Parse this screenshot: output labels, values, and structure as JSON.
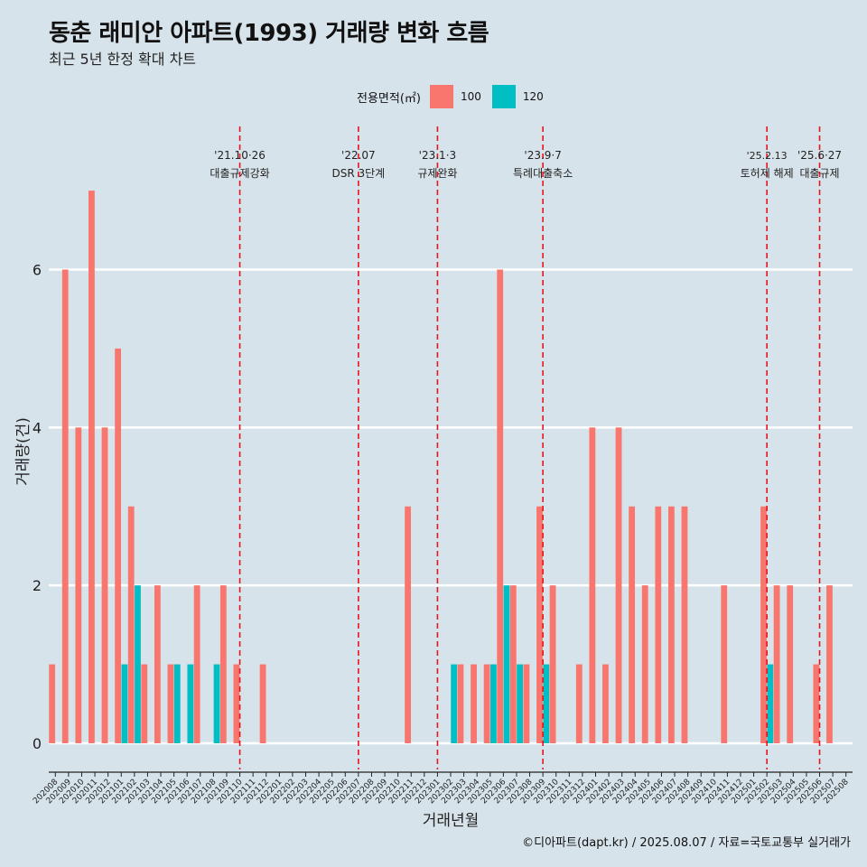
{
  "title": "동춘 래미안 아파트(1993) 거래량 변화 흐름",
  "subtitle": "최근 5년 한정 확대 차트",
  "caption": "©디아파트(dapt.kr) / 2025.08.07 / 자료=국토교통부 실거래가",
  "legend": {
    "title": "전용면적(㎡)",
    "items": [
      {
        "label": "100",
        "color": "#f8766d"
      },
      {
        "label": "120",
        "color": "#00bfc4"
      }
    ]
  },
  "chart_data": {
    "type": "bar",
    "xlabel": "거래년월",
    "ylabel": "거래량(건)",
    "ylim": [
      0,
      7.4
    ],
    "yticks": [
      0,
      2,
      4,
      6
    ],
    "grid": true,
    "legend_position": "top",
    "categories": [
      "202008",
      "202009",
      "202010",
      "202011",
      "202012",
      "202101",
      "202102",
      "202103",
      "202104",
      "202105",
      "202106",
      "202107",
      "202108",
      "202109",
      "202110",
      "202111",
      "202112",
      "202201",
      "202202",
      "202203",
      "202204",
      "202205",
      "202206",
      "202207",
      "202208",
      "202209",
      "202210",
      "202211",
      "202212",
      "202301",
      "202302",
      "202303",
      "202304",
      "202305",
      "202306",
      "202307",
      "202308",
      "202309",
      "202310",
      "202311",
      "202312",
      "202401",
      "202402",
      "202403",
      "202404",
      "202405",
      "202406",
      "202407",
      "202408",
      "202409",
      "202410",
      "202411",
      "202412",
      "202501",
      "202502",
      "202503",
      "202504",
      "202505",
      "202506",
      "202507",
      "202508"
    ],
    "series": [
      {
        "name": "100",
        "color": "#f8766d",
        "values": [
          1,
          6,
          4,
          7,
          4,
          5,
          3,
          1,
          2,
          1,
          0,
          2,
          0,
          2,
          1,
          0,
          1,
          0,
          0,
          0,
          0,
          0,
          0,
          0,
          0,
          0,
          0,
          3,
          0,
          0,
          0,
          1,
          1,
          1,
          6,
          2,
          1,
          3,
          2,
          0,
          1,
          4,
          1,
          4,
          3,
          2,
          3,
          3,
          3,
          0,
          0,
          2,
          0,
          0,
          3,
          2,
          2,
          0,
          1,
          2,
          0
        ]
      },
      {
        "name": "120",
        "color": "#00bfc4",
        "values": [
          0,
          0,
          0,
          0,
          0,
          1,
          2,
          0,
          0,
          1,
          1,
          0,
          1,
          0,
          0,
          0,
          0,
          0,
          0,
          0,
          0,
          0,
          0,
          0,
          0,
          0,
          0,
          0,
          0,
          0,
          1,
          0,
          0,
          1,
          2,
          1,
          0,
          1,
          0,
          0,
          0,
          0,
          0,
          0,
          0,
          0,
          0,
          0,
          0,
          0,
          0,
          0,
          0,
          0,
          1,
          0,
          0,
          0,
          0,
          0,
          0
        ]
      }
    ],
    "events": [
      {
        "x": "202110",
        "date": "'21.10·26",
        "label": "대출규제강화"
      },
      {
        "x": "202207",
        "date": "'22.07",
        "label": "DSR 3단계"
      },
      {
        "x": "202301",
        "date": "'23.1·3",
        "label": "규제완화"
      },
      {
        "x": "202309",
        "date": "'23.9·7",
        "label": "특례대출축소"
      },
      {
        "x": "202502",
        "date": "'25.2.13",
        "label": "토허제 해제"
      },
      {
        "x": "202506",
        "date": "'25.6·27",
        "label": "대출규제"
      }
    ]
  }
}
